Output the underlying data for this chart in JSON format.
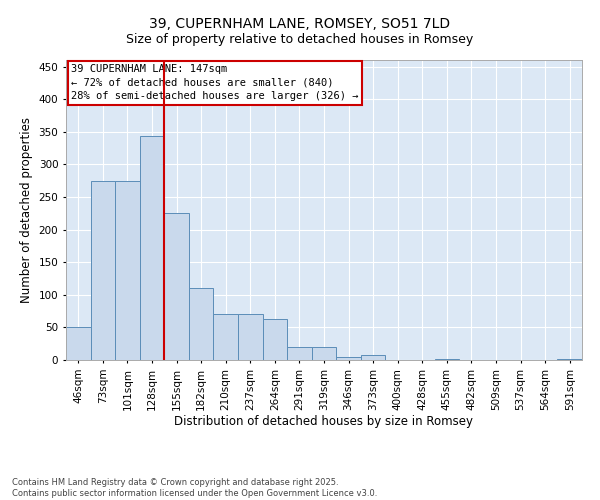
{
  "title": "39, CUPERNHAM LANE, ROMSEY, SO51 7LD",
  "subtitle": "Size of property relative to detached houses in Romsey",
  "xlabel": "Distribution of detached houses by size in Romsey",
  "ylabel": "Number of detached properties",
  "categories": [
    "46sqm",
    "73sqm",
    "101sqm",
    "128sqm",
    "155sqm",
    "182sqm",
    "210sqm",
    "237sqm",
    "264sqm",
    "291sqm",
    "319sqm",
    "346sqm",
    "373sqm",
    "400sqm",
    "428sqm",
    "455sqm",
    "482sqm",
    "509sqm",
    "537sqm",
    "564sqm",
    "591sqm"
  ],
  "values": [
    50,
    275,
    275,
    344,
    226,
    110,
    70,
    70,
    63,
    20,
    20,
    5,
    7,
    0,
    0,
    1,
    0,
    0,
    0,
    0,
    2
  ],
  "bar_color": "#c9d9ec",
  "bar_edge_color": "#5b8db8",
  "vline_x_index": 4,
  "vline_color": "#cc0000",
  "annotation_text": "39 CUPERNHAM LANE: 147sqm\n← 72% of detached houses are smaller (840)\n28% of semi-detached houses are larger (326) →",
  "annotation_box_color": "#cc0000",
  "annotation_fontsize": 7.5,
  "ylim": [
    0,
    460
  ],
  "yticks": [
    0,
    50,
    100,
    150,
    200,
    250,
    300,
    350,
    400,
    450
  ],
  "background_color": "#dce8f5",
  "grid_color": "#ffffff",
  "footer": "Contains HM Land Registry data © Crown copyright and database right 2025.\nContains public sector information licensed under the Open Government Licence v3.0.",
  "title_fontsize": 10,
  "subtitle_fontsize": 9,
  "xlabel_fontsize": 8.5,
  "ylabel_fontsize": 8.5,
  "tick_fontsize": 7.5,
  "footer_fontsize": 6
}
